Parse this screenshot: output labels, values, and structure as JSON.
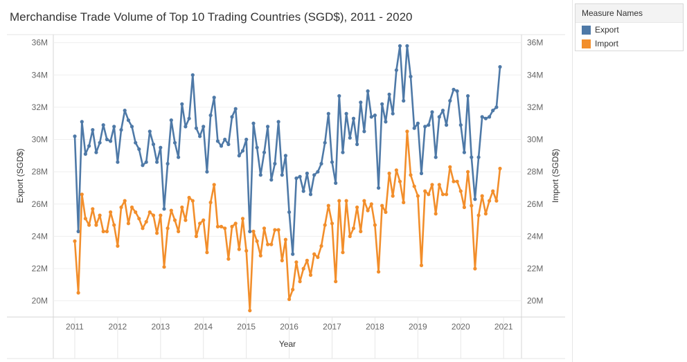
{
  "title": "Merchandise Trade Volume of Top 10 Trading Countries (SGD$), 2011 - 2020",
  "legend": {
    "title": "Measure Names",
    "items": [
      {
        "label": "Export",
        "color": "#4e79a7"
      },
      {
        "label": "Import",
        "color": "#f28e2b"
      }
    ]
  },
  "chart_data": {
    "type": "line",
    "title": "Merchandise Trade Volume of Top 10 Trading Countries (SGD$), 2011 - 2020",
    "xlabel": "Year",
    "ylabel_left": "Export (SGD$)",
    "ylabel_right": "Import (SGD$)",
    "x_ticks": [
      "2011",
      "2012",
      "2013",
      "2014",
      "2015",
      "2016",
      "2017",
      "2018",
      "2019",
      "2020",
      "2021"
    ],
    "y_ticks": [
      "20M",
      "22M",
      "24M",
      "26M",
      "28M",
      "30M",
      "32M",
      "34M",
      "36M"
    ],
    "ylim": [
      19000000,
      36500000
    ],
    "xlim": [
      "2010-07",
      "2021-06"
    ],
    "grid": true,
    "legend_position": "top-right outside",
    "x": [
      "2011-01",
      "2011-02",
      "2011-03",
      "2011-04",
      "2011-05",
      "2011-06",
      "2011-07",
      "2011-08",
      "2011-09",
      "2011-10",
      "2011-11",
      "2011-12",
      "2012-01",
      "2012-02",
      "2012-03",
      "2012-04",
      "2012-05",
      "2012-06",
      "2012-07",
      "2012-08",
      "2012-09",
      "2012-10",
      "2012-11",
      "2012-12",
      "2013-01",
      "2013-02",
      "2013-03",
      "2013-04",
      "2013-05",
      "2013-06",
      "2013-07",
      "2013-08",
      "2013-09",
      "2013-10",
      "2013-11",
      "2013-12",
      "2014-01",
      "2014-02",
      "2014-03",
      "2014-04",
      "2014-05",
      "2014-06",
      "2014-07",
      "2014-08",
      "2014-09",
      "2014-10",
      "2014-11",
      "2014-12",
      "2015-01",
      "2015-02",
      "2015-03",
      "2015-04",
      "2015-05",
      "2015-06",
      "2015-07",
      "2015-08",
      "2015-09",
      "2015-10",
      "2015-11",
      "2015-12",
      "2016-01",
      "2016-02",
      "2016-03",
      "2016-04",
      "2016-05",
      "2016-06",
      "2016-07",
      "2016-08",
      "2016-09",
      "2016-10",
      "2016-11",
      "2016-12",
      "2017-01",
      "2017-02",
      "2017-03",
      "2017-04",
      "2017-05",
      "2017-06",
      "2017-07",
      "2017-08",
      "2017-09",
      "2017-10",
      "2017-11",
      "2017-12",
      "2018-01",
      "2018-02",
      "2018-03",
      "2018-04",
      "2018-05",
      "2018-06",
      "2018-07",
      "2018-08",
      "2018-09",
      "2018-10",
      "2018-11",
      "2018-12",
      "2019-01",
      "2019-02",
      "2019-03",
      "2019-04",
      "2019-05",
      "2019-06",
      "2019-07",
      "2019-08",
      "2019-09",
      "2019-10",
      "2019-11",
      "2019-12",
      "2020-01",
      "2020-02",
      "2020-03",
      "2020-04",
      "2020-05",
      "2020-06",
      "2020-07",
      "2020-08",
      "2020-09",
      "2020-10",
      "2020-11",
      "2020-12"
    ],
    "series": [
      {
        "name": "Export",
        "color": "#4e79a7",
        "axis": "left",
        "values": [
          30.2,
          24.3,
          31.1,
          29.1,
          29.6,
          30.6,
          29.2,
          29.8,
          30.9,
          30.0,
          29.9,
          30.8,
          28.6,
          30.6,
          31.8,
          31.2,
          30.8,
          29.8,
          29.4,
          28.4,
          28.6,
          30.5,
          29.7,
          28.6,
          29.5,
          25.7,
          28.5,
          31.2,
          29.8,
          28.9,
          32.2,
          30.8,
          31.3,
          34.0,
          30.7,
          30.2,
          30.8,
          28.0,
          31.5,
          32.6,
          29.9,
          29.6,
          30.0,
          29.7,
          31.4,
          31.9,
          29.0,
          29.3,
          30.0,
          24.3,
          31.0,
          29.5,
          27.8,
          29.2,
          30.8,
          27.5,
          28.5,
          31.1,
          27.8,
          29.0,
          25.5,
          22.9,
          27.6,
          27.7,
          26.8,
          27.9,
          26.6,
          27.8,
          28.0,
          28.5,
          29.8,
          31.6,
          28.6,
          27.3,
          32.7,
          29.2,
          31.6,
          30.1,
          31.3,
          29.7,
          32.3,
          30.5,
          33.0,
          31.4,
          31.5,
          27.0,
          32.2,
          31.1,
          32.8,
          31.6,
          34.3,
          35.8,
          32.4,
          35.8,
          33.9,
          30.7,
          31.0,
          27.9,
          30.8,
          30.9,
          31.7,
          28.9,
          31.4,
          31.8,
          30.9,
          32.4,
          33.1,
          33.0,
          30.9,
          29.2,
          32.7,
          28.9,
          26.3,
          28.9,
          31.4,
          31.3,
          31.4,
          31.8,
          32.0,
          34.5
        ]
      },
      {
        "name": "Import",
        "color": "#f28e2b",
        "axis": "right",
        "values": [
          23.7,
          20.5,
          26.6,
          25.1,
          24.7,
          25.7,
          24.7,
          25.3,
          24.3,
          24.3,
          25.5,
          24.7,
          23.4,
          25.8,
          26.2,
          24.8,
          25.8,
          25.5,
          25.1,
          24.5,
          24.9,
          25.5,
          25.3,
          24.2,
          25.3,
          22.1,
          24.5,
          25.6,
          25.0,
          24.3,
          25.8,
          25.0,
          26.4,
          26.2,
          24.0,
          24.8,
          25.0,
          23.0,
          26.1,
          27.2,
          24.6,
          24.6,
          24.5,
          22.6,
          24.6,
          24.8,
          23.2,
          25.1,
          23.1,
          19.4,
          24.3,
          23.7,
          22.8,
          24.5,
          23.5,
          23.5,
          24.4,
          24.4,
          22.5,
          23.8,
          20.1,
          20.7,
          22.4,
          21.2,
          22.0,
          22.5,
          21.6,
          22.9,
          22.7,
          23.4,
          24.7,
          25.9,
          24.8,
          21.2,
          26.2,
          23.0,
          26.2,
          24.0,
          24.5,
          25.8,
          24.3,
          26.2,
          25.6,
          26.0,
          24.7,
          21.8,
          25.9,
          25.5,
          27.9,
          26.5,
          28.1,
          27.4,
          26.1,
          30.5,
          27.8,
          27.1,
          26.5,
          22.2,
          26.8,
          26.6,
          27.2,
          25.4,
          27.2,
          26.6,
          26.6,
          28.3,
          27.4,
          27.4,
          26.8,
          25.8,
          28.0,
          25.9,
          22.0,
          25.3,
          26.5,
          25.4,
          26.2,
          26.8,
          26.2,
          28.2
        ]
      }
    ]
  }
}
